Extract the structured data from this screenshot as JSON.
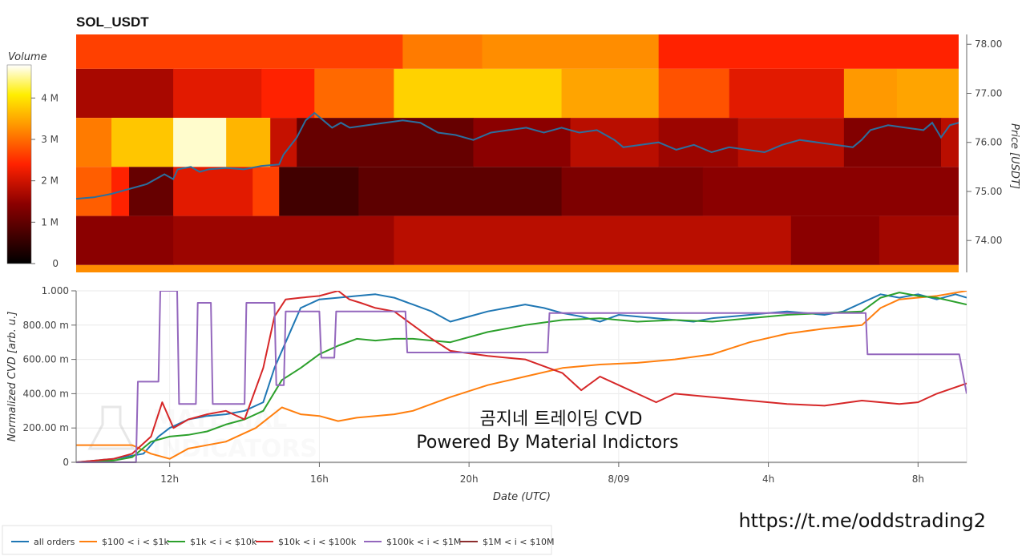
{
  "page": {
    "title": "SOL_USDT",
    "overlay_line1": "곰지네 트레이딩 CVD",
    "overlay_line2": "Powered By Material Indictors",
    "url": "https://t.me/oddstrading2",
    "watermark_line1": "MATERIAL",
    "watermark_line2": "INDICATORS"
  },
  "chart_data": [
    {
      "type": "heatmap",
      "title": "SOL_USDT",
      "colorbar_label": "Volume",
      "colorbar_ticks": [
        "0",
        "1 M",
        "2 M",
        "3 M",
        "4 M"
      ],
      "colorbar_range": [
        0,
        4800000
      ],
      "ylabel": "Price [USDT]",
      "y_ticks": [
        "74.00",
        "75.00",
        "76.00",
        "77.00",
        "78.00"
      ],
      "ylim": [
        73.35,
        78.2
      ],
      "price_bands": [
        {
          "low": 77.5,
          "high": 78.5,
          "segments": [
            {
              "end": 0.37,
              "level": 0.55
            },
            {
              "end": 0.46,
              "level": 0.65
            },
            {
              "end": 0.66,
              "level": 0.68
            },
            {
              "end": 1.0,
              "level": 0.5
            }
          ]
        },
        {
          "low": 76.5,
          "high": 77.5,
          "segments": [
            {
              "end": 0.11,
              "level": 0.35
            },
            {
              "end": 0.21,
              "level": 0.45
            },
            {
              "end": 0.27,
              "level": 0.5
            },
            {
              "end": 0.36,
              "level": 0.62
            },
            {
              "end": 0.55,
              "level": 0.8
            },
            {
              "end": 0.66,
              "level": 0.72
            },
            {
              "end": 0.74,
              "level": 0.58
            },
            {
              "end": 0.87,
              "level": 0.45
            },
            {
              "end": 0.93,
              "level": 0.7
            },
            {
              "end": 1.0,
              "level": 0.72
            }
          ]
        },
        {
          "low": 75.5,
          "high": 76.5,
          "segments": [
            {
              "end": 0.04,
              "level": 0.65
            },
            {
              "end": 0.11,
              "level": 0.78
            },
            {
              "end": 0.17,
              "level": 0.97
            },
            {
              "end": 0.22,
              "level": 0.75
            },
            {
              "end": 0.25,
              "level": 0.4
            },
            {
              "end": 0.45,
              "level": 0.22
            },
            {
              "end": 0.56,
              "level": 0.3
            },
            {
              "end": 0.66,
              "level": 0.38
            },
            {
              "end": 0.75,
              "level": 0.33
            },
            {
              "end": 0.87,
              "level": 0.38
            },
            {
              "end": 0.98,
              "level": 0.28
            },
            {
              "end": 1.0,
              "level": 0.38
            }
          ]
        },
        {
          "low": 74.5,
          "high": 75.5,
          "segments": [
            {
              "end": 0.04,
              "level": 0.6
            },
            {
              "end": 0.06,
              "level": 0.5
            },
            {
              "end": 0.11,
              "level": 0.22
            },
            {
              "end": 0.2,
              "level": 0.45
            },
            {
              "end": 0.23,
              "level": 0.55
            },
            {
              "end": 0.32,
              "level": 0.14
            },
            {
              "end": 0.55,
              "level": 0.2
            },
            {
              "end": 0.71,
              "level": 0.27
            },
            {
              "end": 1.0,
              "level": 0.3
            }
          ]
        },
        {
          "low": 73.5,
          "high": 74.5,
          "segments": [
            {
              "end": 0.11,
              "level": 0.3
            },
            {
              "end": 0.36,
              "level": 0.33
            },
            {
              "end": 0.81,
              "level": 0.38
            },
            {
              "end": 0.91,
              "level": 0.3
            },
            {
              "end": 1.0,
              "level": 0.34
            }
          ]
        },
        {
          "low": 73.35,
          "high": 73.5,
          "segments": [
            {
              "end": 1.0,
              "level": 0.68
            }
          ]
        }
      ],
      "price_line": {
        "color": "#2b6f9e",
        "x_frac": [
          0.0,
          0.02,
          0.04,
          0.06,
          0.08,
          0.1,
          0.11,
          0.115,
          0.13,
          0.14,
          0.15,
          0.17,
          0.19,
          0.21,
          0.23,
          0.235,
          0.25,
          0.26,
          0.27,
          0.28,
          0.29,
          0.3,
          0.31,
          0.33,
          0.35,
          0.37,
          0.39,
          0.41,
          0.43,
          0.45,
          0.47,
          0.49,
          0.51,
          0.53,
          0.55,
          0.57,
          0.59,
          0.61,
          0.62,
          0.64,
          0.66,
          0.68,
          0.7,
          0.72,
          0.74,
          0.76,
          0.78,
          0.8,
          0.82,
          0.84,
          0.86,
          0.88,
          0.89,
          0.9,
          0.92,
          0.94,
          0.96,
          0.97,
          0.98,
          0.99,
          1.0
        ],
        "price": [
          74.85,
          74.88,
          74.95,
          75.05,
          75.15,
          75.35,
          75.25,
          75.45,
          75.5,
          75.4,
          75.45,
          75.48,
          75.45,
          75.52,
          75.55,
          75.75,
          76.1,
          76.45,
          76.6,
          76.45,
          76.3,
          76.4,
          76.3,
          76.35,
          76.4,
          76.45,
          76.4,
          76.2,
          76.15,
          76.05,
          76.2,
          76.25,
          76.3,
          76.2,
          76.3,
          76.2,
          76.25,
          76.05,
          75.9,
          75.95,
          76.0,
          75.85,
          75.95,
          75.8,
          75.9,
          75.85,
          75.8,
          75.95,
          76.05,
          76.0,
          75.95,
          75.9,
          76.05,
          76.25,
          76.35,
          76.3,
          76.25,
          76.4,
          76.1,
          76.35,
          76.4
        ]
      }
    },
    {
      "type": "line",
      "xlabel": "Date (UTC)",
      "ylabel": "Normalized CVD [arb. u.]",
      "x_unit": "hours since 09:30 UTC",
      "xlim": [
        0,
        23.8
      ],
      "ylim": [
        0,
        1
      ],
      "y_ticks": [
        "0",
        "200.00 m",
        "400.00 m",
        "600.00 m",
        "800.00 m",
        "1.000"
      ],
      "x_ticks": [
        {
          "x": 2.5,
          "label": "12h"
        },
        {
          "x": 6.5,
          "label": "16h"
        },
        {
          "x": 10.5,
          "label": "20h"
        },
        {
          "x": 14.5,
          "label": "8/09"
        },
        {
          "x": 18.5,
          "label": "4h"
        },
        {
          "x": 22.5,
          "label": "8h"
        }
      ],
      "series": [
        {
          "name": "all orders",
          "color": "#1f77b4",
          "x": [
            0,
            1,
            1.8,
            2.2,
            2.5,
            3,
            3.5,
            4,
            4.5,
            5,
            5.3,
            5.8,
            6,
            6.5,
            7,
            7.5,
            8,
            8.5,
            9,
            9.5,
            10,
            10.5,
            11,
            11.5,
            12,
            12.5,
            13,
            13.5,
            14,
            14.5,
            15,
            15.5,
            16,
            16.5,
            17,
            17.5,
            18,
            18.5,
            19,
            19.5,
            20,
            20.5,
            21,
            21.5,
            22,
            22.5,
            23,
            23.5,
            23.8
          ],
          "y": [
            0.0,
            0.02,
            0.05,
            0.15,
            0.2,
            0.25,
            0.27,
            0.28,
            0.3,
            0.35,
            0.55,
            0.8,
            0.9,
            0.95,
            0.96,
            0.97,
            0.98,
            0.96,
            0.92,
            0.88,
            0.82,
            0.85,
            0.88,
            0.9,
            0.92,
            0.9,
            0.87,
            0.85,
            0.82,
            0.86,
            0.85,
            0.84,
            0.83,
            0.82,
            0.84,
            0.85,
            0.86,
            0.87,
            0.88,
            0.87,
            0.86,
            0.88,
            0.93,
            0.98,
            0.96,
            0.98,
            0.95,
            0.98,
            0.96
          ]
        },
        {
          "name": "$100 < i < $1k",
          "color": "#ff7f0e",
          "x": [
            0,
            1,
            1.5,
            2,
            2.5,
            3,
            4,
            4.8,
            5.5,
            6,
            6.5,
            7,
            7.5,
            8,
            8.5,
            9,
            10,
            11,
            12,
            13,
            14,
            15,
            16,
            17,
            18,
            19,
            20,
            21,
            21.5,
            22,
            23,
            23.8
          ],
          "y": [
            0.1,
            0.1,
            0.1,
            0.05,
            0.02,
            0.08,
            0.12,
            0.2,
            0.32,
            0.28,
            0.27,
            0.24,
            0.26,
            0.27,
            0.28,
            0.3,
            0.38,
            0.45,
            0.5,
            0.55,
            0.57,
            0.58,
            0.6,
            0.63,
            0.7,
            0.75,
            0.78,
            0.8,
            0.9,
            0.95,
            0.97,
            1.0
          ]
        },
        {
          "name": "$1k < i < $10k",
          "color": "#2ca02c",
          "x": [
            0,
            1,
            1.5,
            2,
            2.5,
            3,
            3.5,
            4,
            4.5,
            5,
            5.5,
            6,
            6.5,
            7,
            7.5,
            8,
            8.5,
            9,
            10,
            11,
            12,
            13,
            14,
            15,
            16,
            17,
            18,
            19,
            20,
            21,
            21.5,
            22,
            22.5,
            23,
            23.8
          ],
          "y": [
            0.0,
            0.01,
            0.03,
            0.12,
            0.15,
            0.16,
            0.18,
            0.22,
            0.25,
            0.3,
            0.48,
            0.55,
            0.63,
            0.68,
            0.72,
            0.71,
            0.72,
            0.72,
            0.7,
            0.76,
            0.8,
            0.83,
            0.84,
            0.82,
            0.83,
            0.82,
            0.84,
            0.86,
            0.87,
            0.88,
            0.96,
            0.99,
            0.97,
            0.96,
            0.92
          ]
        },
        {
          "name": "$10k < i < $100k",
          "color": "#d62728",
          "x": [
            0,
            1,
            1.5,
            2,
            2.3,
            2.6,
            3,
            3.5,
            4,
            4.5,
            5,
            5.3,
            5.6,
            6,
            6.5,
            7,
            7.3,
            7.6,
            8,
            8.5,
            9,
            9.5,
            10,
            11,
            12,
            13,
            13.5,
            14,
            14.5,
            15,
            15.5,
            16,
            17,
            18,
            19,
            20,
            21,
            22,
            22.5,
            23,
            23.8
          ],
          "y": [
            0.0,
            0.02,
            0.05,
            0.15,
            0.35,
            0.2,
            0.25,
            0.28,
            0.3,
            0.25,
            0.55,
            0.85,
            0.95,
            0.96,
            0.97,
            1.0,
            0.95,
            0.93,
            0.9,
            0.88,
            0.8,
            0.72,
            0.65,
            0.62,
            0.6,
            0.52,
            0.42,
            0.5,
            0.45,
            0.4,
            0.35,
            0.4,
            0.38,
            0.36,
            0.34,
            0.33,
            0.36,
            0.34,
            0.35,
            0.4,
            0.46
          ]
        },
        {
          "name": "$100k < i < $1M",
          "color": "#9467bd",
          "x": [
            0,
            1.6,
            1.65,
            2.2,
            2.25,
            2.7,
            2.75,
            3.2,
            3.25,
            3.6,
            3.65,
            4.5,
            4.55,
            5.3,
            5.35,
            5.55,
            5.6,
            6.5,
            6.55,
            6.9,
            6.95,
            8.8,
            8.85,
            12.6,
            12.65,
            21.1,
            21.15,
            23.6,
            23.8
          ],
          "y": [
            0.0,
            0.0,
            0.47,
            0.47,
            1.0,
            1.0,
            0.34,
            0.34,
            0.93,
            0.93,
            0.34,
            0.34,
            0.93,
            0.93,
            0.45,
            0.45,
            0.88,
            0.88,
            0.61,
            0.61,
            0.88,
            0.88,
            0.64,
            0.64,
            0.87,
            0.87,
            0.63,
            0.63,
            0.4
          ]
        },
        {
          "name": "$1M < i < $10M",
          "color": "#8c2d2d",
          "x": [],
          "y": []
        }
      ]
    }
  ]
}
